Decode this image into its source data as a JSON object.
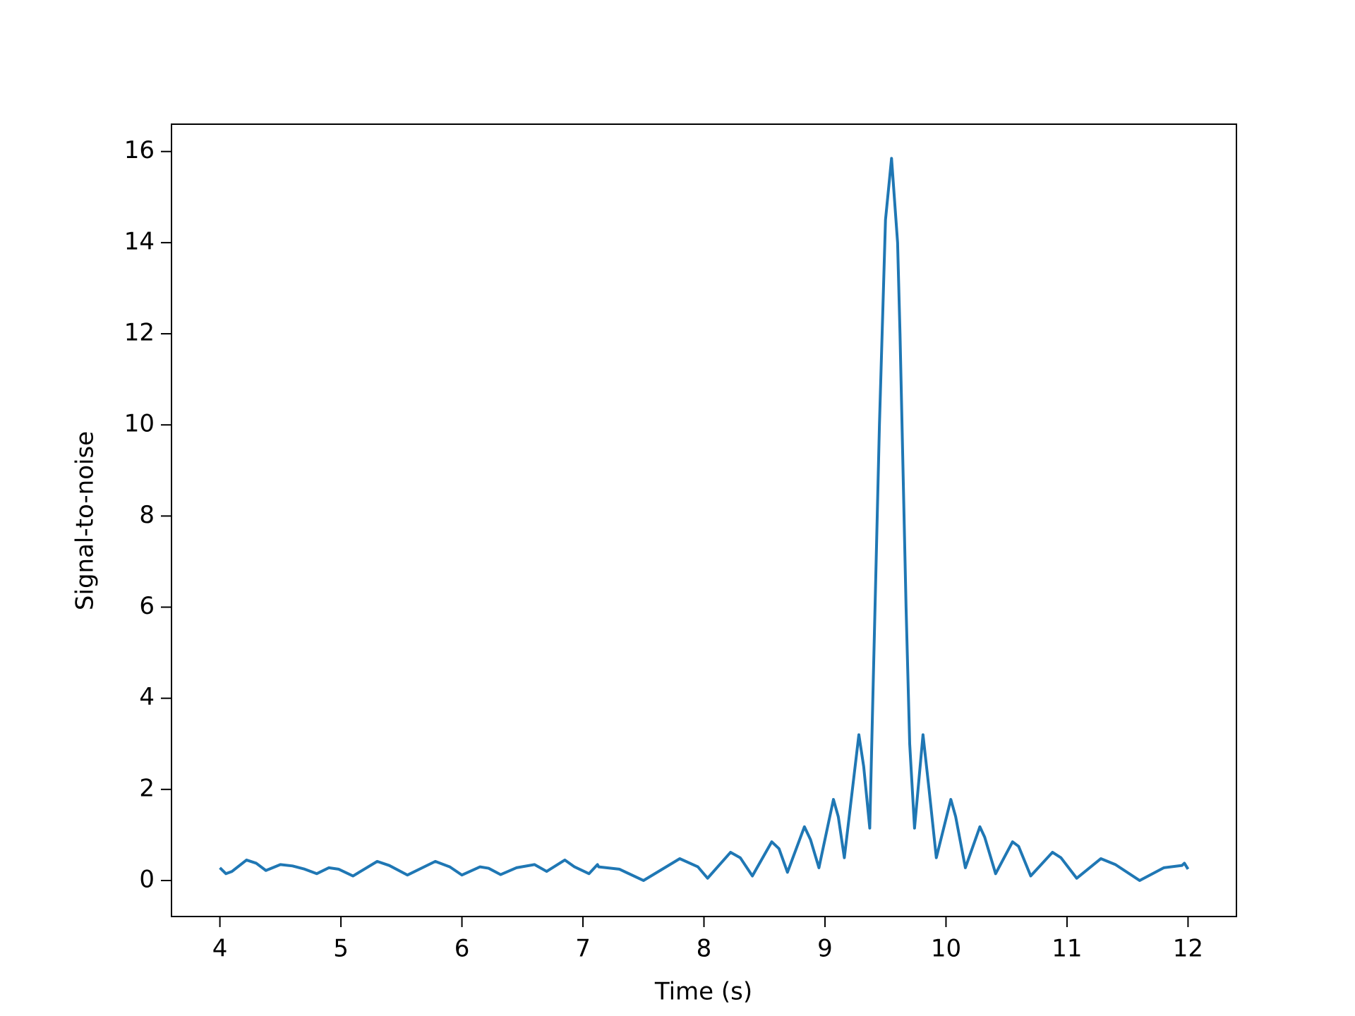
{
  "chart_data": {
    "type": "line",
    "xlabel": "Time (s)",
    "ylabel": "Signal-to-noise",
    "color": "#1f77b4",
    "x": [
      4.0,
      4.05,
      4.1,
      4.22,
      4.3,
      4.38,
      4.5,
      4.6,
      4.7,
      4.8,
      4.9,
      4.98,
      5.1,
      5.3,
      5.4,
      5.55,
      5.78,
      5.9,
      6.0,
      6.15,
      6.22,
      6.32,
      6.45,
      6.6,
      6.7,
      6.85,
      6.93,
      7.05,
      7.12,
      7.13,
      7.3,
      7.5,
      7.8,
      7.95,
      8.03,
      8.22,
      8.3,
      8.4,
      8.56,
      8.62,
      8.69,
      8.83,
      8.88,
      8.95,
      9.07,
      9.11,
      9.16,
      9.28,
      9.32,
      9.37,
      9.4,
      9.45,
      9.5,
      9.55,
      9.6,
      9.62,
      9.67,
      9.7,
      9.74,
      9.81,
      9.86,
      9.92,
      10.04,
      10.08,
      10.16,
      10.28,
      10.32,
      10.41,
      10.55,
      10.6,
      10.7,
      10.88,
      10.95,
      11.08,
      11.28,
      11.4,
      11.6,
      11.8,
      11.95,
      11.97,
      12.0
    ],
    "values": [
      0.28,
      0.15,
      0.2,
      0.45,
      0.38,
      0.22,
      0.35,
      0.32,
      0.25,
      0.15,
      0.28,
      0.25,
      0.1,
      0.42,
      0.33,
      0.12,
      0.42,
      0.3,
      0.12,
      0.3,
      0.27,
      0.13,
      0.28,
      0.35,
      0.2,
      0.45,
      0.3,
      0.15,
      0.35,
      0.3,
      0.25,
      0.0,
      0.48,
      0.3,
      0.05,
      0.62,
      0.5,
      0.1,
      0.85,
      0.7,
      0.18,
      1.18,
      0.9,
      0.28,
      1.78,
      1.4,
      0.5,
      3.2,
      2.5,
      1.15,
      4.5,
      10,
      14.5,
      15.85,
      14,
      12,
      6,
      3,
      1.15,
      3.2,
      2.0,
      0.5,
      1.78,
      1.4,
      0.28,
      1.18,
      0.95,
      0.15,
      0.85,
      0.75,
      0.1,
      0.62,
      0.5,
      0.05,
      0.48,
      0.35,
      0.0,
      0.28,
      0.33,
      0.38,
      0.25
    ],
    "xlim": [
      3.6,
      12.4
    ],
    "ylim": [
      -0.79,
      16.6
    ],
    "xticks": [
      4,
      5,
      6,
      7,
      8,
      9,
      10,
      11,
      12
    ],
    "yticks": [
      0,
      2,
      4,
      6,
      8,
      10,
      12,
      14,
      16
    ]
  }
}
